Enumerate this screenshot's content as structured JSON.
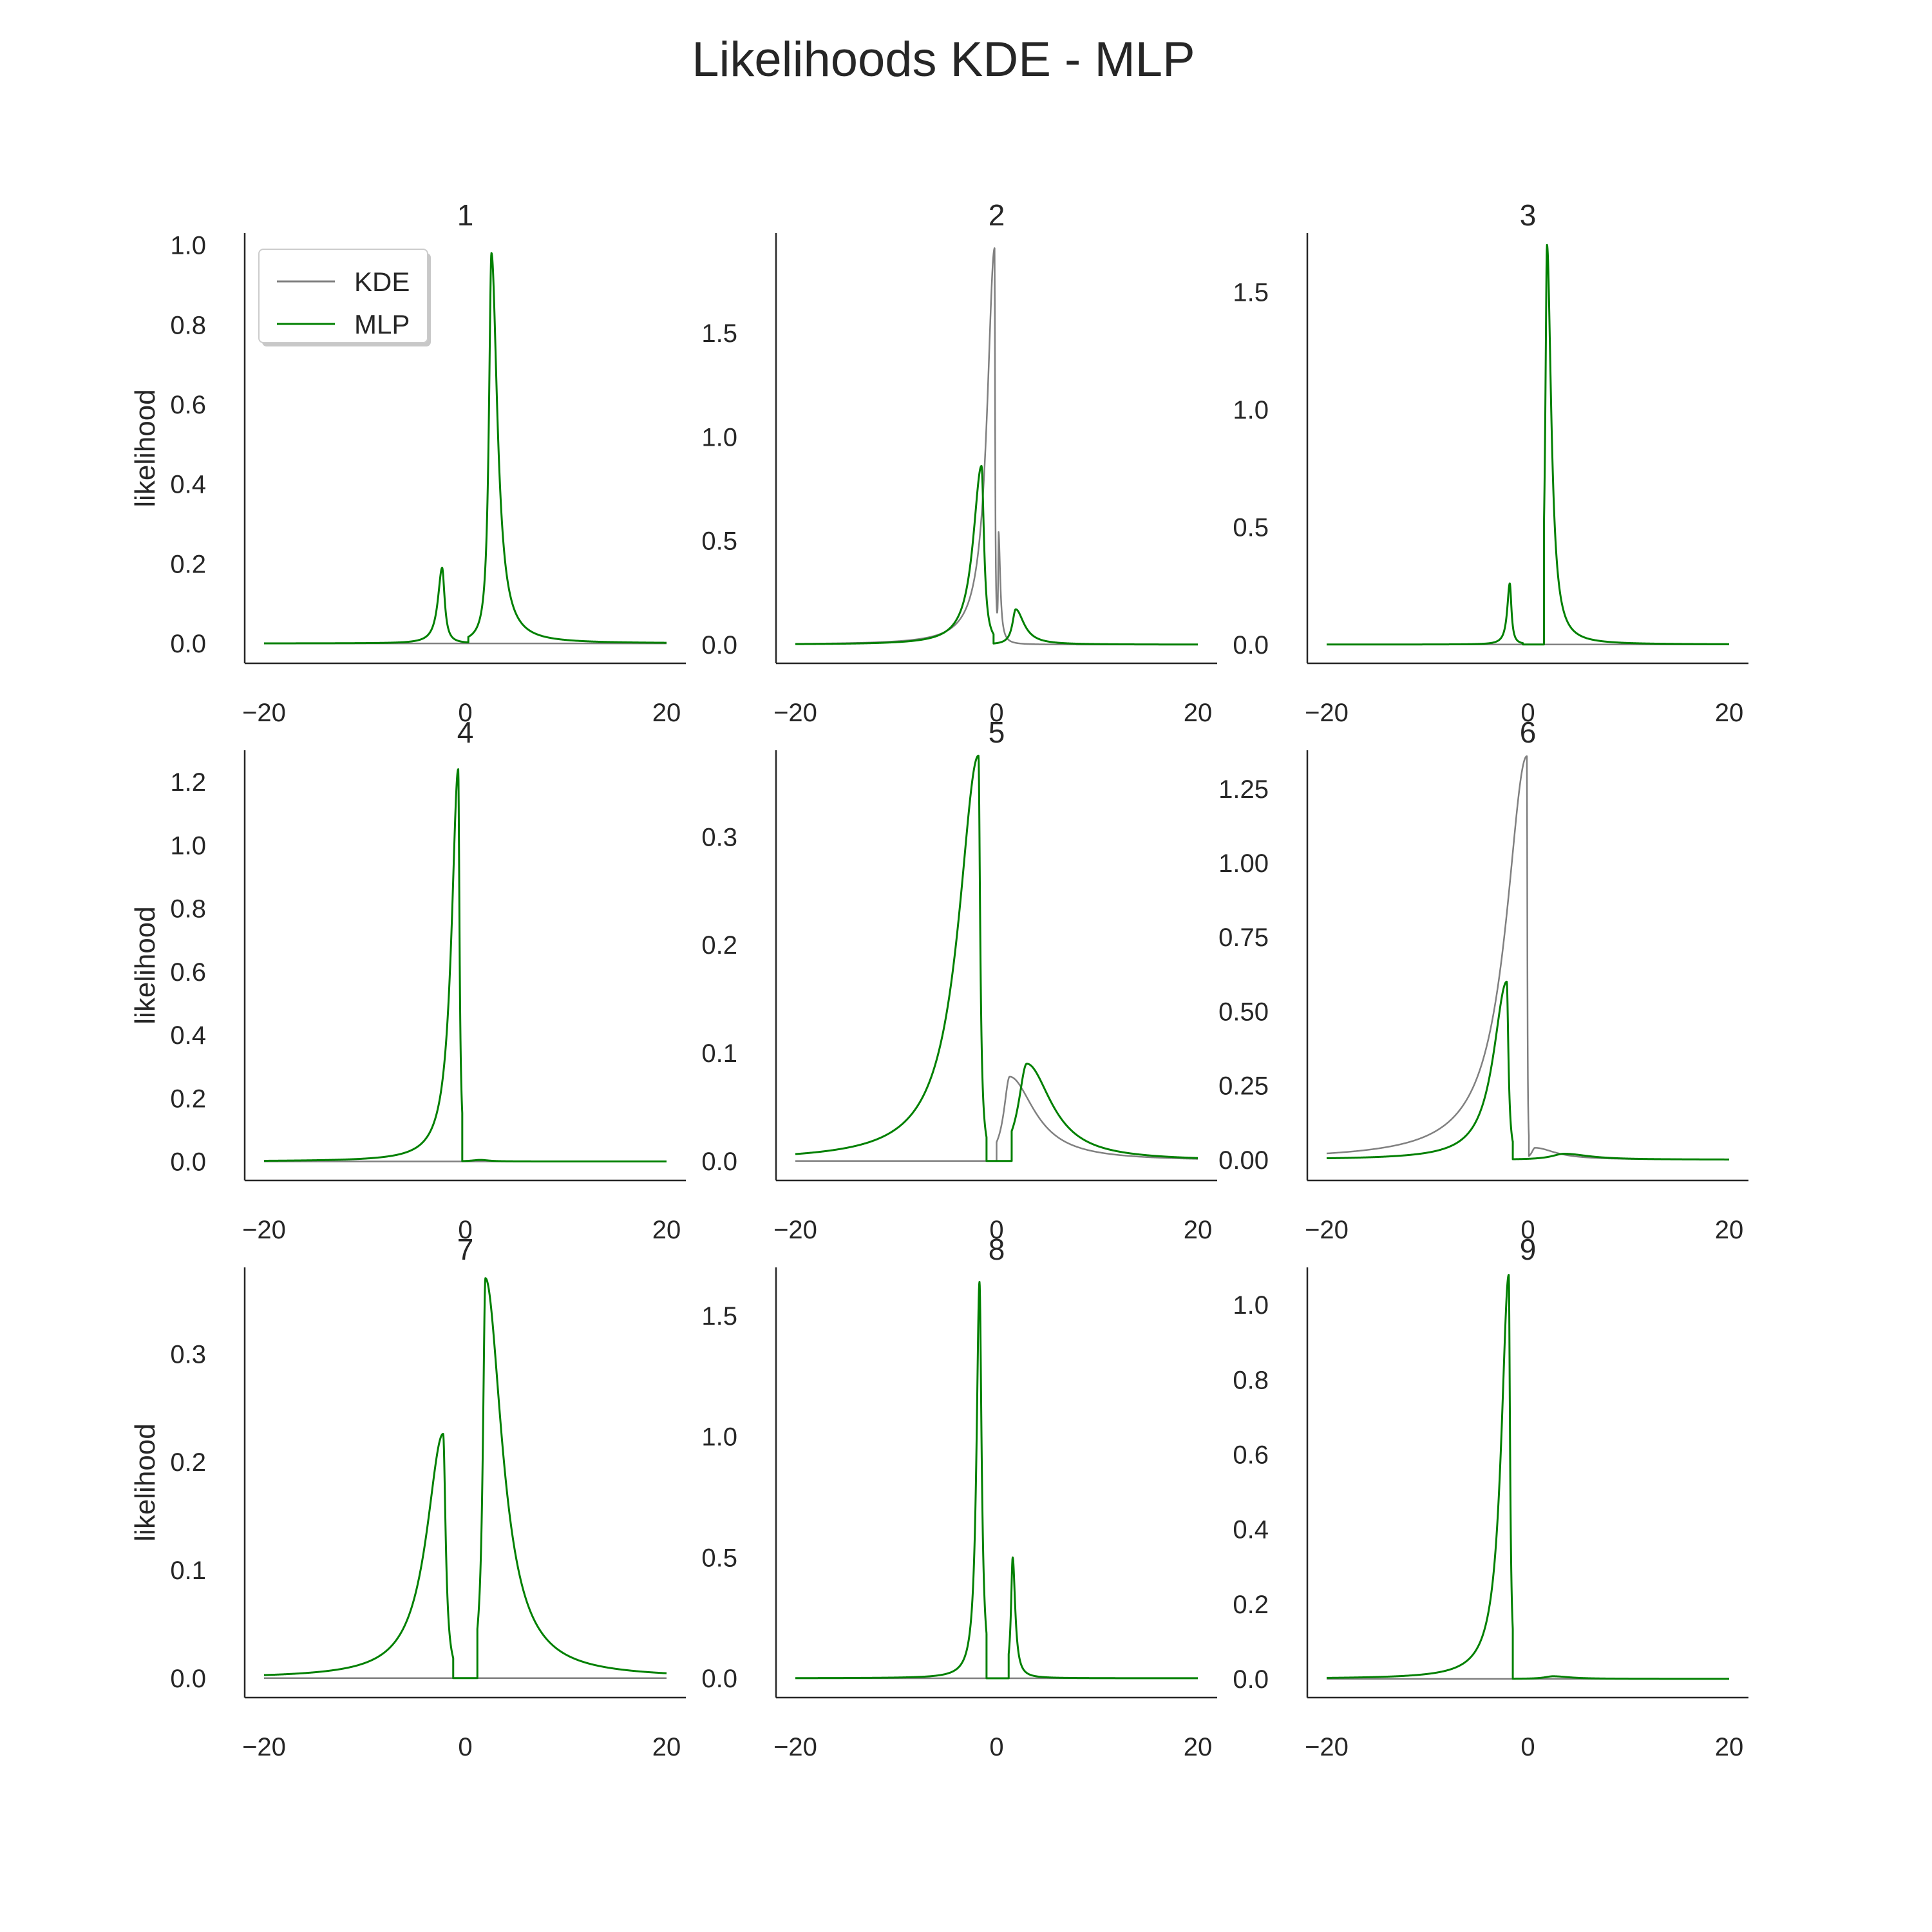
{
  "title": "Likelihoods KDE - MLP",
  "colors": {
    "KDE": "#808080",
    "MLP": "#008000",
    "axis": "#262626"
  },
  "legend": {
    "placement": "upper-left of panel 1",
    "entries": [
      "KDE",
      "MLP"
    ]
  },
  "chart_data": [
    {
      "type": "line",
      "title": "1",
      "ylabel": "likelihood",
      "xlim": [
        -20,
        20
      ],
      "ylim": [
        -0.05,
        1.03
      ],
      "xticks": [
        -20,
        0,
        20
      ],
      "yticks": [
        0.0,
        0.2,
        0.4,
        0.6,
        0.8,
        1.0
      ],
      "ytick_labels": [
        "0.0",
        "0.2",
        "0.4",
        "0.6",
        "0.8",
        "1.0"
      ],
      "series": [
        {
          "name": "KDE",
          "peaks": []
        },
        {
          "name": "MLP",
          "peaks": [
            {
              "x": -2.3,
              "y": 0.19,
              "wl": 0.5,
              "wr": 0.3
            },
            {
              "x": 2.6,
              "y": 0.98,
              "wl": 0.3,
              "wr": 0.7
            }
          ],
          "cuts": [
            0.3
          ]
        }
      ]
    },
    {
      "type": "line",
      "title": "2",
      "ylabel": "",
      "xlim": [
        -20,
        20
      ],
      "ylim": [
        -0.09,
        1.98
      ],
      "xticks": [
        -20,
        0,
        20
      ],
      "yticks": [
        0.0,
        0.5,
        1.0,
        1.5
      ],
      "ytick_labels": [
        "0.0",
        "0.5",
        "1.0",
        "1.5"
      ],
      "series": [
        {
          "name": "KDE",
          "peaks": [
            {
              "x": -0.2,
              "y": 1.9,
              "wl": 0.9,
              "wr": 0.06
            },
            {
              "x": 0.2,
              "y": 0.5,
              "wl": 0.05,
              "wr": 0.2
            }
          ]
        },
        {
          "name": "MLP",
          "peaks": [
            {
              "x": -1.5,
              "y": 0.86,
              "wl": 1.0,
              "wr": 0.3
            },
            {
              "x": 1.9,
              "y": 0.17,
              "wl": 0.4,
              "wr": 1.0
            }
          ],
          "cuts": [
            -0.3
          ]
        }
      ]
    },
    {
      "type": "line",
      "title": "3",
      "ylabel": "",
      "xlim": [
        -20,
        20
      ],
      "ylim": [
        -0.08,
        1.75
      ],
      "xticks": [
        -20,
        0,
        20
      ],
      "yticks": [
        0.0,
        0.5,
        1.0,
        1.5
      ],
      "ytick_labels": [
        "0.0",
        "0.5",
        "1.0",
        "1.5"
      ],
      "series": [
        {
          "name": "KDE",
          "peaks": []
        },
        {
          "name": "MLP",
          "peaks": [
            {
              "x": -1.8,
              "y": 0.26,
              "wl": 0.3,
              "wr": 0.2
            },
            {
              "x": 1.9,
              "y": 1.7,
              "wl": 0.2,
              "wr": 0.5
            }
          ],
          "cuts": [
            -0.5,
            1.6
          ]
        }
      ]
    },
    {
      "type": "line",
      "title": "4",
      "ylabel": "likelihood",
      "xlim": [
        -20,
        20
      ],
      "ylim": [
        -0.06,
        1.3
      ],
      "xticks": [
        -20,
        0,
        20
      ],
      "yticks": [
        0.0,
        0.2,
        0.4,
        0.6,
        0.8,
        1.0,
        1.2
      ],
      "ytick_labels": [
        "0.0",
        "0.2",
        "0.4",
        "0.6",
        "0.8",
        "1.0",
        "1.2"
      ],
      "series": [
        {
          "name": "KDE",
          "peaks": []
        },
        {
          "name": "MLP",
          "peaks": [
            {
              "x": -0.7,
              "y": 1.24,
              "wl": 0.8,
              "wr": 0.15
            },
            {
              "x": 1.5,
              "y": 0.005,
              "wl": 1.0,
              "wr": 1.0
            }
          ],
          "cuts": [
            -0.3
          ]
        }
      ]
    },
    {
      "type": "line",
      "title": "5",
      "ylabel": "",
      "xlim": [
        -20,
        20
      ],
      "ylim": [
        -0.018,
        0.38
      ],
      "xticks": [
        -20,
        0,
        20
      ],
      "yticks": [
        0.0,
        0.1,
        0.2,
        0.3
      ],
      "ytick_labels": [
        "0.0",
        "0.1",
        "0.2",
        "0.3"
      ],
      "series": [
        {
          "name": "KDE",
          "peaks": [
            {
              "x": 1.3,
              "y": 0.078,
              "wl": 0.7,
              "wr": 3.0
            }
          ],
          "cuts": [
            0.0
          ]
        },
        {
          "name": "MLP",
          "peaks": [
            {
              "x": -1.8,
              "y": 0.375,
              "wl": 2.4,
              "wr": 0.2
            },
            {
              "x": 3.0,
              "y": 0.09,
              "wl": 1.0,
              "wr": 3.0
            }
          ],
          "cuts": [
            -1.0,
            1.5
          ]
        }
      ]
    },
    {
      "type": "line",
      "title": "6",
      "ylabel": "",
      "xlim": [
        -20,
        20
      ],
      "ylim": [
        -0.07,
        1.38
      ],
      "xticks": [
        -20,
        0,
        20
      ],
      "yticks": [
        0.0,
        0.25,
        0.5,
        0.75,
        1.0,
        1.25
      ],
      "ytick_labels": [
        "0.00",
        "0.25",
        "0.50",
        "0.75",
        "1.00",
        "1.25"
      ],
      "series": [
        {
          "name": "KDE",
          "peaks": [
            {
              "x": -0.1,
              "y": 1.36,
              "wl": 2.5,
              "wr": 0.05
            },
            {
              "x": 0.7,
              "y": 0.04,
              "wl": 0.4,
              "wr": 2.5
            }
          ],
          "cuts": [
            0.1
          ]
        },
        {
          "name": "MLP",
          "peaks": [
            {
              "x": -2.1,
              "y": 0.6,
              "wl": 1.6,
              "wr": 0.2
            },
            {
              "x": 3.6,
              "y": 0.02,
              "wl": 1.5,
              "wr": 3.0
            }
          ],
          "cuts": [
            -1.5
          ]
        }
      ]
    },
    {
      "type": "line",
      "title": "7",
      "ylabel": "likelihood",
      "xlim": [
        -20,
        20
      ],
      "ylim": [
        -0.018,
        0.38
      ],
      "xticks": [
        -20,
        0,
        20
      ],
      "yticks": [
        0.0,
        0.1,
        0.2,
        0.3
      ],
      "ytick_labels": [
        "0.0",
        "0.1",
        "0.2",
        "0.3"
      ],
      "series": [
        {
          "name": "KDE",
          "peaks": []
        },
        {
          "name": "MLP",
          "peaks": [
            {
              "x": -2.2,
              "y": 0.226,
              "wl": 2.0,
              "wr": 0.3
            },
            {
              "x": 2.0,
              "y": 0.37,
              "wl": 0.3,
              "wr": 2.0
            }
          ],
          "cuts": [
            -1.2,
            1.2
          ]
        }
      ]
    },
    {
      "type": "line",
      "title": "8",
      "ylabel": "",
      "xlim": [
        -20,
        20
      ],
      "ylim": [
        -0.08,
        1.7
      ],
      "xticks": [
        -20,
        0,
        20
      ],
      "yticks": [
        0.0,
        0.5,
        1.0,
        1.5
      ],
      "ytick_labels": [
        "0.0",
        "0.5",
        "1.0",
        "1.5"
      ],
      "series": [
        {
          "name": "KDE",
          "peaks": []
        },
        {
          "name": "MLP",
          "peaks": [
            {
              "x": -1.7,
              "y": 1.64,
              "wl": 0.35,
              "wr": 0.25
            },
            {
              "x": 1.6,
              "y": 0.5,
              "wl": 0.2,
              "wr": 0.3
            }
          ],
          "cuts": [
            -1.0,
            1.2
          ]
        }
      ]
    },
    {
      "type": "line",
      "title": "9",
      "ylabel": "",
      "xlim": [
        -20,
        20
      ],
      "ylim": [
        -0.05,
        1.1
      ],
      "xticks": [
        -20,
        0,
        20
      ],
      "yticks": [
        0.0,
        0.2,
        0.4,
        0.6,
        0.8,
        1.0
      ],
      "ytick_labels": [
        "0.0",
        "0.2",
        "0.4",
        "0.6",
        "0.8",
        "1.0"
      ],
      "series": [
        {
          "name": "KDE",
          "peaks": []
        },
        {
          "name": "MLP",
          "peaks": [
            {
              "x": -1.9,
              "y": 1.08,
              "wl": 0.9,
              "wr": 0.15
            },
            {
              "x": 2.5,
              "y": 0.007,
              "wl": 1.0,
              "wr": 2.0
            }
          ],
          "cuts": [
            -1.5
          ]
        }
      ]
    }
  ]
}
